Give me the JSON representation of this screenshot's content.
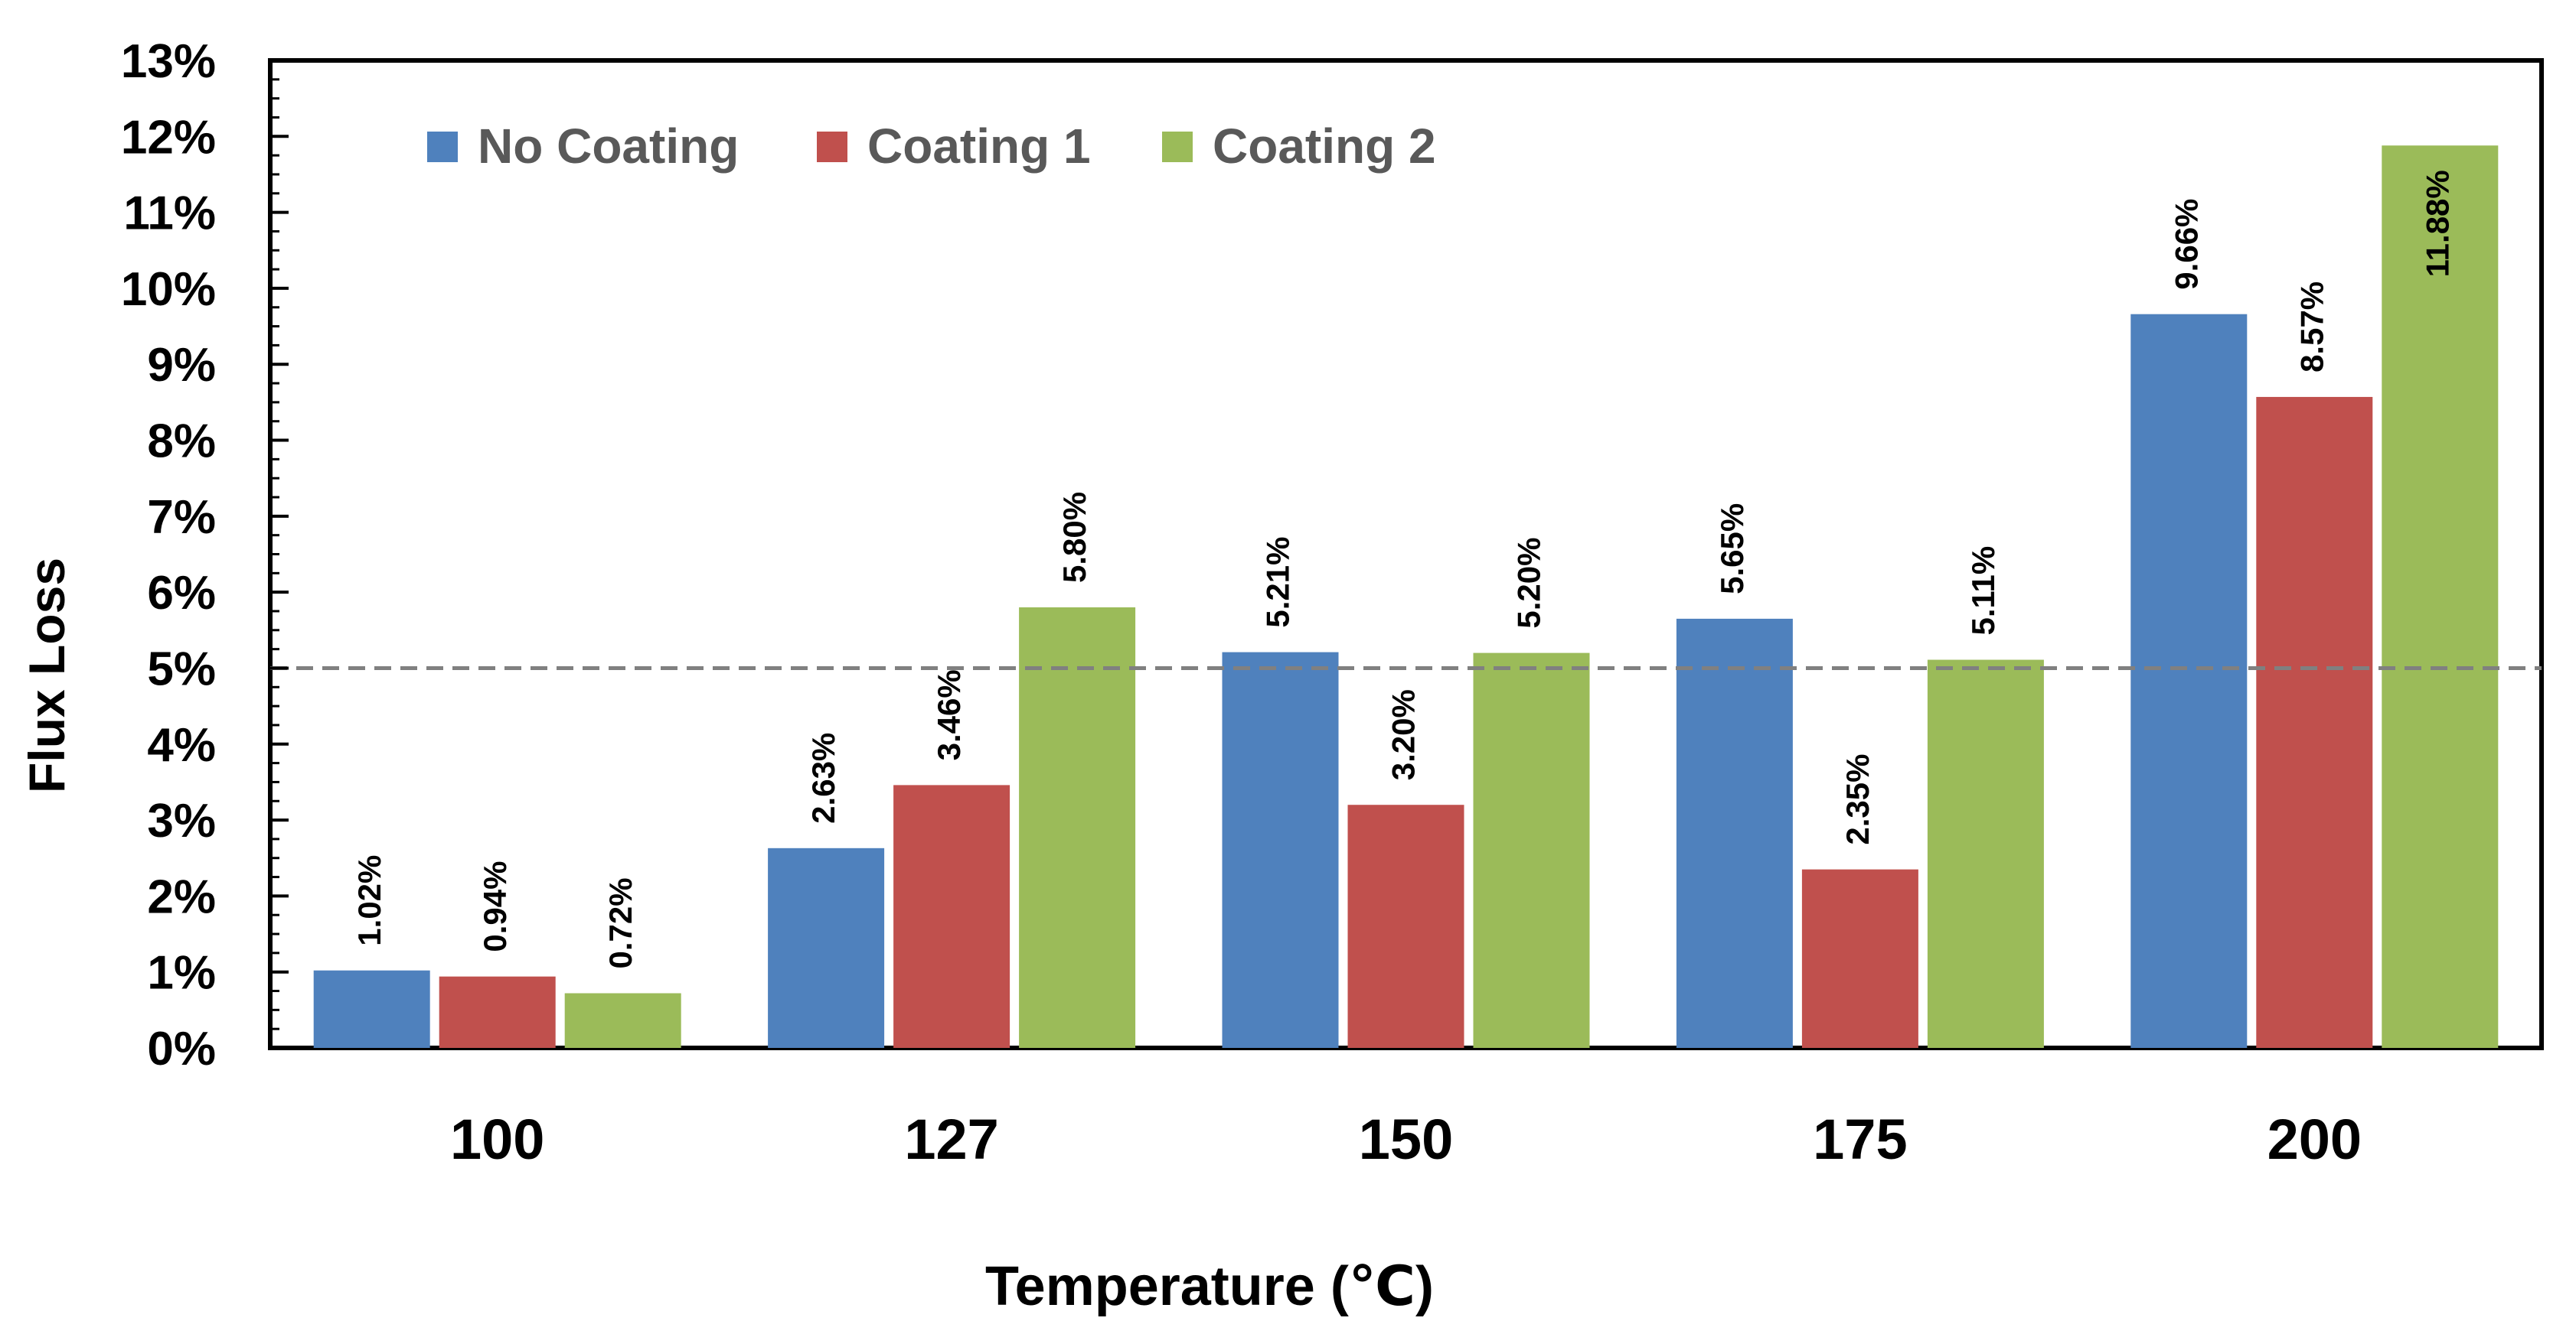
{
  "chart_data": {
    "type": "bar",
    "title": "",
    "xlabel": "Temperature (℃)",
    "ylabel": "Flux Loss",
    "categories": [
      "100",
      "127",
      "150",
      "175",
      "200"
    ],
    "series": [
      {
        "name": "No Coating",
        "color": "#4f81bd",
        "values": [
          1.02,
          2.63,
          5.21,
          5.65,
          9.66
        ],
        "labels": [
          "1.02%",
          "2.63%",
          "5.21%",
          "5.65%",
          "9.66%"
        ]
      },
      {
        "name": "Coating 1",
        "color": "#c0504d",
        "values": [
          0.94,
          3.46,
          3.2,
          2.35,
          8.57
        ],
        "labels": [
          "0.94%",
          "3.46%",
          "3.20%",
          "2.35%",
          "8.57%"
        ]
      },
      {
        "name": "Coating 2",
        "color": "#9bbb59",
        "values": [
          0.72,
          5.8,
          5.2,
          5.11,
          11.88
        ],
        "labels": [
          "0.72%",
          "5.80%",
          "5.20%",
          "5.11%",
          "11.88%"
        ]
      }
    ],
    "ylim": [
      0,
      13
    ],
    "yticks": [
      "0%",
      "1%",
      "2%",
      "3%",
      "4%",
      "5%",
      "6%",
      "7%",
      "8%",
      "9%",
      "10%",
      "11%",
      "12%",
      "13%"
    ],
    "reference_line": {
      "value": 5,
      "style": "dashed",
      "color": "#808080"
    },
    "legend_position": "top-left",
    "grid": false
  }
}
